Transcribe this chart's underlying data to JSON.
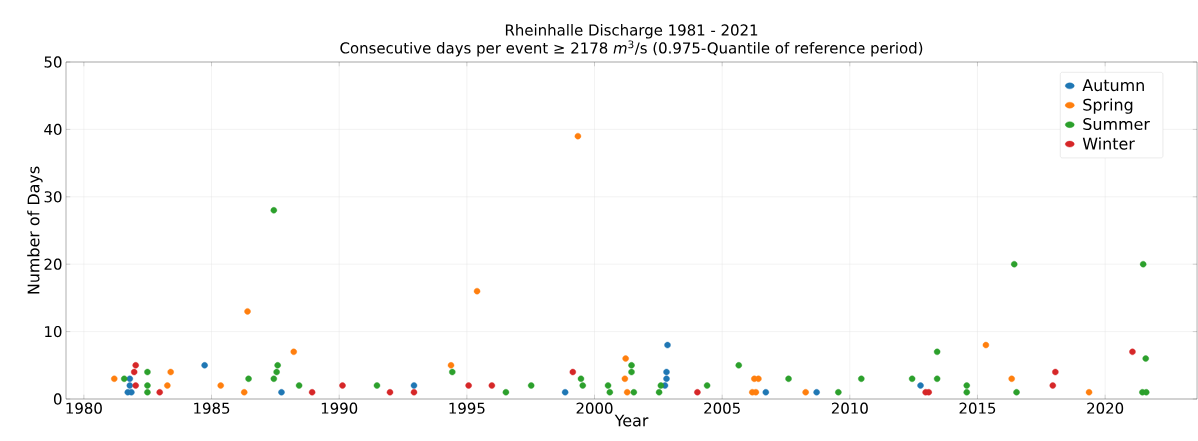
{
  "chart_data": {
    "type": "scatter",
    "title": "Rheinhalle Discharge 1981 - 2021",
    "subtitle": "Consecutive days per event ≥ 2178 *m*$^{3}$/s (0.975-Quantile of reference period)",
    "xlabel": "Year",
    "ylabel": "Number of Days",
    "xlim": [
      1979.3,
      2023.6
    ],
    "ylim": [
      0,
      50
    ],
    "xticks": [
      1980,
      1985,
      1990,
      1995,
      2000,
      2005,
      2010,
      2015,
      2020
    ],
    "yticks": [
      0,
      10,
      20,
      30,
      40,
      50
    ],
    "grid": true,
    "legend": "top right",
    "series": [
      {
        "name": "Autumn",
        "color": "#1f77b4",
        "x": [
          1981.72,
          1981.86,
          1981.8,
          1981.8,
          1984.73,
          1987.74,
          1992.93,
          1998.85,
          2002.76,
          2002.82,
          2002.82,
          2002.86,
          2006.71,
          2008.7,
          2012.77
        ],
        "values": [
          1,
          1,
          2,
          3,
          5,
          1,
          2,
          1,
          2,
          3,
          4,
          8,
          1,
          1,
          2
        ]
      },
      {
        "name": "Spring",
        "color": "#ff7f0e",
        "x": [
          1981.19,
          1983.4,
          1983.27,
          1985.36,
          1986.28,
          1986.41,
          1988.22,
          1994.38,
          1995.4,
          1999.35,
          2001.22,
          2001.19,
          2001.28,
          2006.26,
          2006.42,
          2006.18,
          2006.32,
          2008.27,
          2015.33,
          2016.34,
          2019.37
        ],
        "values": [
          3,
          4,
          2,
          2,
          1,
          13,
          7,
          5,
          16,
          39,
          6,
          3,
          1,
          3,
          3,
          1,
          1,
          1,
          8,
          3,
          1
        ]
      },
      {
        "name": "Summer",
        "color": "#2ca02c",
        "x": [
          1981.58,
          1982.49,
          1982.49,
          1982.49,
          1986.45,
          1987.44,
          1987.55,
          1987.59,
          1987.44,
          1988.43,
          1991.48,
          1994.43,
          1996.53,
          1997.52,
          1999.47,
          1999.54,
          2000.53,
          2000.6,
          2001.45,
          2001.45,
          2001.54,
          2002.53,
          2002.6,
          2004.41,
          2005.65,
          2007.6,
          2009.55,
          2010.45,
          2012.44,
          2013.42,
          2013.42,
          2014.58,
          2014.58,
          2016.44,
          2016.53,
          2021.49,
          2021.59,
          2021.46,
          2021.61
        ],
        "values": [
          3,
          4,
          2,
          1,
          3,
          3,
          4,
          5,
          28,
          2,
          2,
          4,
          1,
          2,
          3,
          2,
          2,
          1,
          5,
          4,
          1,
          1,
          2,
          2,
          5,
          3,
          1,
          3,
          3,
          7,
          3,
          2,
          1,
          20,
          1,
          20,
          6,
          1,
          1
        ]
      },
      {
        "name": "Winter",
        "color": "#d62728",
        "x": [
          1982.03,
          1981.97,
          1982.03,
          1982.97,
          1988.94,
          1990.13,
          1991.99,
          1992.93,
          1995.07,
          1995.98,
          1999.15,
          2004.03,
          2012.97,
          2013.09,
          2017.95,
          2018.05,
          2021.07
        ],
        "values": [
          5,
          4,
          2,
          1,
          1,
          2,
          1,
          1,
          2,
          2,
          4,
          1,
          1,
          1,
          2,
          4,
          7
        ]
      }
    ]
  }
}
